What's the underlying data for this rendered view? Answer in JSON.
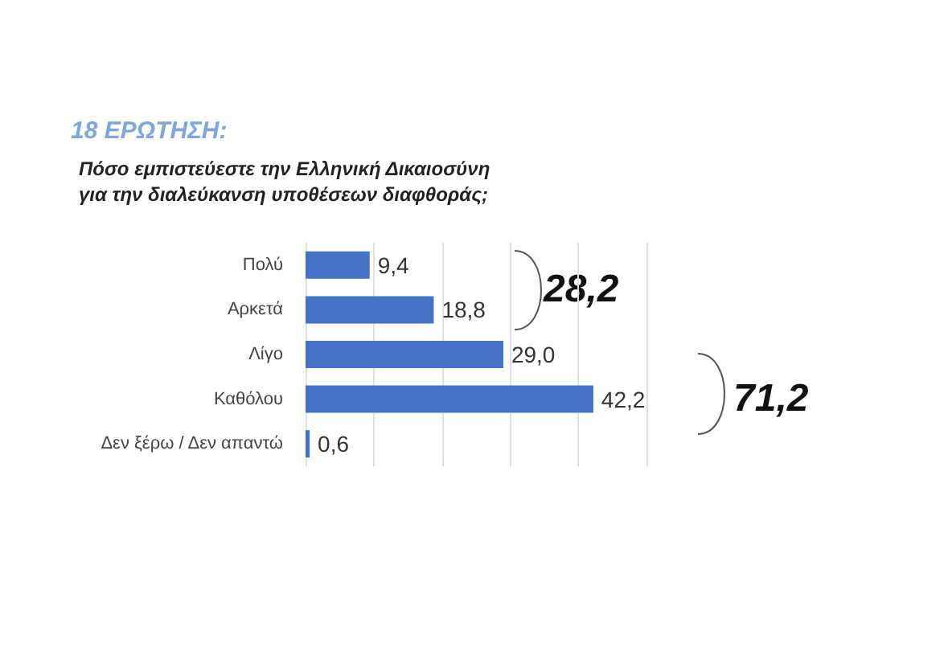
{
  "chart_data": {
    "type": "bar",
    "orientation": "horizontal",
    "subtitle": "18 ΕΡΩΤΗΣΗ:",
    "title": "Πόσο εμπιστεύεστε την Ελληνική Δικαιοσύνη για την διαλεύκανση υποθέσεων διαφθοράς;",
    "categories": [
      "Πολύ",
      "Αρκετά",
      "Λίγο",
      "Καθόλου",
      "Δεν ξέρω / Δεν απαντώ"
    ],
    "values": [
      9.4,
      18.8,
      29.0,
      42.2,
      0.6
    ],
    "value_labels": [
      "9,4",
      "18,8",
      "29,0",
      "42,2",
      "0,6"
    ],
    "color": "#4472c4",
    "xlim": [
      0,
      50
    ],
    "xticks": [
      {
        "value": 0,
        "label": null
      },
      {
        "value": 10,
        "label": null
      },
      {
        "value": 20,
        "label": null
      },
      {
        "value": 30,
        "label": null
      },
      {
        "value": 40,
        "label": null
      },
      {
        "value": 50,
        "label": null
      }
    ],
    "grid": "x",
    "tick_labels": "y",
    "annotations": [
      "28,2",
      "71,2"
    ]
  }
}
